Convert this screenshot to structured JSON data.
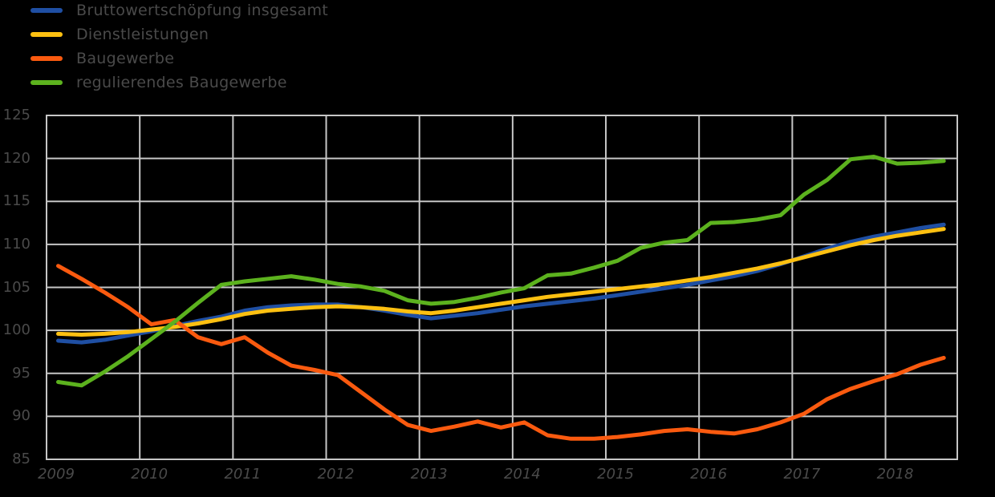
{
  "colors": {
    "background": "#000000",
    "grid": "#c6c6c6",
    "text": "#4a4a4a"
  },
  "legend": {
    "items": [
      {
        "label": "Bruttowertschöpfung insgesamt",
        "color": "#1f4fa3"
      },
      {
        "label": "Dienstleistungen",
        "color": "#fdc011"
      },
      {
        "label": "Baugewerbe",
        "color": "#fa5a0f"
      },
      {
        "label": "regulierendes Baugewerbe",
        "color": "#5cb21e"
      }
    ]
  },
  "chart_data": {
    "type": "line",
    "title": "",
    "xlabel": "",
    "ylabel": "",
    "grid": true,
    "legend_position": "top-left",
    "ylim": [
      85,
      125
    ],
    "xlim": [
      2009,
      2018.77
    ],
    "y_ticks": [
      125,
      120,
      115,
      110,
      105,
      100,
      95,
      90,
      85
    ],
    "x_ticks": [
      2009,
      2010,
      2011,
      2012,
      2013,
      2014,
      2015,
      2016,
      2017,
      2018
    ],
    "x": [
      2009.125,
      2009.375,
      2009.625,
      2009.875,
      2010.125,
      2010.375,
      2010.625,
      2010.875,
      2011.125,
      2011.375,
      2011.625,
      2011.875,
      2012.125,
      2012.375,
      2012.625,
      2012.875,
      2013.125,
      2013.375,
      2013.625,
      2013.875,
      2014.125,
      2014.375,
      2014.625,
      2014.875,
      2015.125,
      2015.375,
      2015.625,
      2015.875,
      2016.125,
      2016.375,
      2016.625,
      2016.875,
      2017.125,
      2017.375,
      2017.625,
      2017.875,
      2018.125,
      2018.375,
      2018.625
    ],
    "series": [
      {
        "name": "Bruttowertschöpfung insgesamt",
        "color": "#1f4fa3",
        "values": [
          98.8,
          98.6,
          98.9,
          99.4,
          99.9,
          100.5,
          101.1,
          101.6,
          102.3,
          102.7,
          102.9,
          103.0,
          103.0,
          102.7,
          102.3,
          101.8,
          101.4,
          101.7,
          102.0,
          102.4,
          102.8,
          103.1,
          103.4,
          103.7,
          104.1,
          104.5,
          104.9,
          105.3,
          105.8,
          106.3,
          106.9,
          107.7,
          108.6,
          109.5,
          110.3,
          110.9,
          111.4,
          111.9,
          112.3
        ]
      },
      {
        "name": "Dienstleistungen",
        "color": "#fdc011",
        "values": [
          99.6,
          99.5,
          99.6,
          99.8,
          100.1,
          100.4,
          100.8,
          101.3,
          101.9,
          102.3,
          102.5,
          102.7,
          102.8,
          102.7,
          102.5,
          102.2,
          102.0,
          102.3,
          102.7,
          103.1,
          103.5,
          103.9,
          104.2,
          104.5,
          104.8,
          105.1,
          105.4,
          105.8,
          106.2,
          106.7,
          107.2,
          107.8,
          108.5,
          109.2,
          109.9,
          110.5,
          111.0,
          111.4,
          111.8
        ]
      },
      {
        "name": "Baugewerbe",
        "color": "#fa5a0f",
        "values": [
          107.5,
          106.0,
          104.4,
          102.7,
          100.7,
          101.2,
          99.2,
          98.4,
          99.2,
          97.4,
          95.9,
          95.4,
          94.8,
          92.8,
          90.8,
          89.0,
          88.3,
          88.8,
          89.4,
          88.7,
          89.3,
          87.8,
          87.4,
          87.4,
          87.6,
          87.9,
          88.3,
          88.5,
          88.2,
          88.0,
          88.5,
          89.3,
          90.3,
          92.0,
          93.2,
          94.1,
          94.9,
          96.0,
          96.8
        ]
      },
      {
        "name": "regulierendes Baugewerbe",
        "color": "#5cb21e",
        "values": [
          94.0,
          93.6,
          95.2,
          97.0,
          99.0,
          101.0,
          103.2,
          105.3,
          105.7,
          106.0,
          106.3,
          105.9,
          105.4,
          105.1,
          104.6,
          103.5,
          103.1,
          103.3,
          103.8,
          104.4,
          104.9,
          106.4,
          106.6,
          107.3,
          108.1,
          109.6,
          110.2,
          110.5,
          112.5,
          112.6,
          112.9,
          113.4,
          115.8,
          117.5,
          119.9,
          120.2,
          119.4,
          119.5,
          119.7
        ]
      }
    ]
  }
}
